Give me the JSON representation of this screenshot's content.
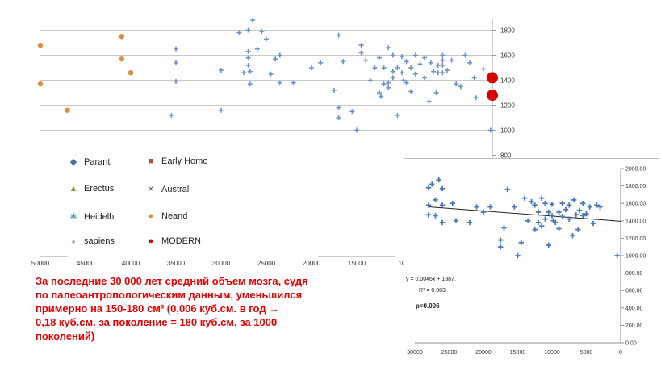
{
  "chart_data": [
    {
      "type": "scatter",
      "title": "",
      "xlabel": "",
      "ylabel": "",
      "xlim": [
        50000,
        0
      ],
      "ylim": [
        800,
        1900
      ],
      "x_ticks": [
        "50000",
        "45000",
        "40000",
        "35000",
        "30000",
        "25000",
        "20000",
        "15000",
        "10"
      ],
      "y_ticks": [
        "1800",
        "1600",
        "1400",
        "1200",
        "1000",
        "800"
      ],
      "grid": true,
      "legend_position": "bottom",
      "series": [
        {
          "name": "Parant",
          "marker": "diamond",
          "color": "#4a6fa5",
          "points": []
        },
        {
          "name": "Early Homo",
          "marker": "square",
          "color": "#b04a4a",
          "points": []
        },
        {
          "name": "Erectus",
          "marker": "triangle",
          "color": "#7a9a3a",
          "points": []
        },
        {
          "name": "Austral",
          "marker": "x",
          "color": "#666666",
          "points": []
        },
        {
          "name": "Heidelb",
          "marker": "asterisk",
          "color": "#5aa0c0",
          "points": []
        },
        {
          "name": "Neand",
          "marker": "circle",
          "color": "#e08a3c",
          "points": [
            [
              50000,
              1680
            ],
            [
              50000,
              1370
            ],
            [
              47000,
              1160
            ],
            [
              41000,
              1750
            ],
            [
              41000,
              1570
            ],
            [
              40000,
              1460
            ]
          ]
        },
        {
          "name": "sapiens",
          "marker": "plus",
          "color": "#6f93c8",
          "points": [
            [
              35500,
              1120
            ],
            [
              35000,
              1650
            ],
            [
              35000,
              1540
            ],
            [
              35000,
              1390
            ],
            [
              30000,
              1480
            ],
            [
              30000,
              1160
            ],
            [
              28000,
              1780
            ],
            [
              27500,
              1460
            ],
            [
              27000,
              1800
            ],
            [
              27000,
              1630
            ],
            [
              27000,
              1580
            ],
            [
              27000,
              1520
            ],
            [
              26800,
              1470
            ],
            [
              26800,
              1370
            ],
            [
              26500,
              1880
            ],
            [
              26000,
              1650
            ],
            [
              25500,
              1790
            ],
            [
              25000,
              1730
            ],
            [
              24500,
              1450
            ],
            [
              24000,
              1570
            ],
            [
              23500,
              1600
            ],
            [
              23500,
              1380
            ],
            [
              22000,
              1380
            ],
            [
              20000,
              1500
            ],
            [
              19000,
              1540
            ],
            [
              17500,
              1320
            ],
            [
              17000,
              1760
            ],
            [
              17000,
              1180
            ],
            [
              17000,
              1100
            ],
            [
              16500,
              1550
            ],
            [
              15500,
              1150
            ],
            [
              15000,
              1000
            ],
            [
              14500,
              1680
            ],
            [
              14500,
              1620
            ],
            [
              14000,
              1560
            ],
            [
              13500,
              1400
            ],
            [
              13000,
              1500
            ],
            [
              12500,
              1580
            ],
            [
              12500,
              1300
            ],
            [
              12300,
              1270
            ],
            [
              12000,
              1500
            ],
            [
              12000,
              1370
            ],
            [
              11500,
              1660
            ],
            [
              11500,
              1380
            ],
            [
              11500,
              1340
            ],
            [
              11000,
              1600
            ],
            [
              11000,
              1470
            ],
            [
              11000,
              1420
            ],
            [
              10500,
              1500
            ],
            [
              10500,
              1120
            ],
            [
              10000,
              1590
            ],
            [
              10000,
              1460
            ],
            [
              9800,
              1400
            ],
            [
              9500,
              1550
            ],
            [
              9500,
              1380
            ],
            [
              9000,
              1500
            ],
            [
              9000,
              1310
            ],
            [
              8500,
              1600
            ],
            [
              8500,
              1450
            ],
            [
              8000,
              1530
            ],
            [
              7500,
              1580
            ],
            [
              7500,
              1420
            ],
            [
              7000,
              1230
            ],
            [
              6800,
              1540
            ],
            [
              6500,
              1470
            ],
            [
              6200,
              1300
            ],
            [
              6000,
              1520
            ],
            [
              6000,
              1460
            ],
            [
              5500,
              1600
            ],
            [
              5500,
              1560
            ],
            [
              5500,
              1520
            ],
            [
              5500,
              1460
            ],
            [
              5000,
              1480
            ],
            [
              4500,
              1560
            ],
            [
              4000,
              1370
            ],
            [
              3500,
              1350
            ],
            [
              3000,
              1600
            ],
            [
              2500,
              1540
            ],
            [
              2000,
              1420
            ],
            [
              1800,
              1260
            ],
            [
              1000,
              1490
            ],
            [
              200,
              1000
            ]
          ]
        },
        {
          "name": "MODERN",
          "marker": "circle",
          "color": "#d80000",
          "points": [
            [
              0,
              1420
            ],
            [
              0,
              1280
            ]
          ]
        }
      ]
    },
    {
      "type": "scatter",
      "title": "",
      "xlabel": "",
      "ylabel": "",
      "xlim": [
        30000,
        0
      ],
      "ylim": [
        0,
        2000
      ],
      "x_ticks": [
        "30000",
        "25000",
        "20000",
        "15000",
        "10000",
        "5000",
        "0"
      ],
      "y_ticks": [
        "2000.00",
        "1800.00",
        "1600.00",
        "1400.00",
        "1200.00",
        "1000.00",
        "800.00",
        "600.00",
        "400.00",
        "200.00",
        "0.00"
      ],
      "trendline": {
        "equation": "y = 0.0046x + 1387.",
        "r2": "R² = 0.083",
        "p": "p=0.006"
      },
      "series": [
        {
          "name": "sapiens",
          "marker": "plus",
          "color": "#4a78b8",
          "points": [
            [
              28000,
              1780
            ],
            [
              28000,
              1580
            ],
            [
              28000,
              1470
            ],
            [
              27500,
              1820
            ],
            [
              27000,
              1640
            ],
            [
              27000,
              1460
            ],
            [
              26500,
              1870
            ],
            [
              26000,
              1770
            ],
            [
              26000,
              1580
            ],
            [
              26000,
              1380
            ],
            [
              24500,
              1600
            ],
            [
              24000,
              1400
            ],
            [
              22000,
              1380
            ],
            [
              21000,
              1560
            ],
            [
              20000,
              1500
            ],
            [
              19000,
              1560
            ],
            [
              17500,
              1100
            ],
            [
              17500,
              1180
            ],
            [
              17000,
              1320
            ],
            [
              16500,
              1760
            ],
            [
              15500,
              1560
            ],
            [
              15000,
              1000
            ],
            [
              14500,
              1150
            ],
            [
              14000,
              1660
            ],
            [
              13500,
              1400
            ],
            [
              13000,
              1620
            ],
            [
              12500,
              1580
            ],
            [
              12500,
              1300
            ],
            [
              12000,
              1500
            ],
            [
              12000,
              1380
            ],
            [
              11500,
              1660
            ],
            [
              11500,
              1340
            ],
            [
              11000,
              1600
            ],
            [
              11000,
              1420
            ],
            [
              10500,
              1500
            ],
            [
              10500,
              1120
            ],
            [
              10000,
              1590
            ],
            [
              10000,
              1460
            ],
            [
              9800,
              1400
            ],
            [
              9500,
              1380
            ],
            [
              9000,
              1500
            ],
            [
              9000,
              1310
            ],
            [
              8500,
              1600
            ],
            [
              8500,
              1450
            ],
            [
              8000,
              1530
            ],
            [
              7500,
              1580
            ],
            [
              7500,
              1420
            ],
            [
              7000,
              1230
            ],
            [
              6800,
              1640
            ],
            [
              6500,
              1470
            ],
            [
              6200,
              1300
            ],
            [
              6000,
              1520
            ],
            [
              5500,
              1600
            ],
            [
              5500,
              1460
            ],
            [
              5000,
              1480
            ],
            [
              4500,
              1560
            ],
            [
              4000,
              1370
            ],
            [
              3500,
              1580
            ],
            [
              3000,
              1560
            ],
            [
              500,
              1000
            ]
          ]
        }
      ]
    }
  ],
  "legend": {
    "items": [
      {
        "label": "Parant",
        "symbol": "◆",
        "color": "#4a6fa5"
      },
      {
        "label": "Early Homo",
        "symbol": "■",
        "color": "#b04a4a"
      },
      {
        "label": "Erectus",
        "symbol": "▲",
        "color": "#7a9a3a"
      },
      {
        "label": "Austral",
        "symbol": "✕",
        "color": "#666666"
      },
      {
        "label": "Heidelb",
        "symbol": "✱",
        "color": "#5aa0c0"
      },
      {
        "label": "Neand",
        "symbol": "●",
        "color": "#e08a3c"
      },
      {
        "label": "sapiens",
        "symbol": "●",
        "color": "#7fa0d0"
      },
      {
        "label": "MODERN",
        "symbol": "●",
        "color": "#d80000"
      }
    ]
  },
  "caption": {
    "lines": [
      "За последние 30 000 лет средний объем мозга, судя",
      "по палеоантропологическим данным, уменьшился",
      "примерно на 150-180 см³  (0,006 куб.см. в год →",
      "0,18 куб.см. за поколение = 180 куб.см. за 1000",
      "поколений)"
    ],
    "color": "#e60000"
  }
}
